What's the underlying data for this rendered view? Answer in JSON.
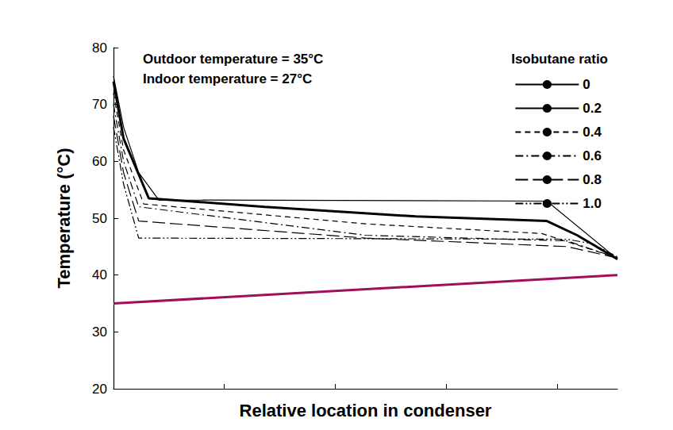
{
  "chart_data": {
    "type": "line",
    "xlabel": "Relative location in condenser",
    "ylabel": "Temperature (°C)",
    "annotations": [
      "Outdoor temperature = 35°C",
      "Indoor temperature = 27°C"
    ],
    "legend_title": "Isobutane ratio",
    "legend": "upper right",
    "grid": false,
    "tick_labels": "y",
    "xlim": [
      0,
      1
    ],
    "xticks": [
      0.22,
      0.44,
      0.66,
      0.88
    ],
    "ylim": [
      20,
      80
    ],
    "yticks": [
      20,
      30,
      40,
      50,
      60,
      70,
      80
    ],
    "series": [
      {
        "name": "0",
        "color": "#000000",
        "line_style": "solid",
        "x": [
          0,
          0.02,
          0.05,
          0.09,
          0.86,
          1
        ],
        "values": [
          75,
          66,
          58,
          53.2,
          53,
          42.8
        ]
      },
      {
        "name": "0.2",
        "color": "#000000",
        "line_style": "thick",
        "x": [
          0,
          0.02,
          0.07,
          0.3,
          0.6,
          0.86,
          0.92,
          1
        ],
        "values": [
          74,
          64,
          53.5,
          52,
          50.3,
          49.5,
          47,
          42.8
        ]
      },
      {
        "name": "0.4",
        "color": "#000000",
        "line_style": "dashed",
        "x": [
          0,
          0.02,
          0.06,
          0.5,
          0.85,
          1
        ],
        "values": [
          72,
          62,
          52.5,
          49,
          47.3,
          43
        ]
      },
      {
        "name": "0.6",
        "color": "#000000",
        "line_style": "dashdot",
        "x": [
          0,
          0.02,
          0.05,
          0.5,
          0.9,
          1
        ],
        "values": [
          70,
          60,
          52,
          47,
          46,
          43
        ]
      },
      {
        "name": "0.8",
        "color": "#000000",
        "line_style": "longdash",
        "x": [
          0,
          0.02,
          0.05,
          0.5,
          0.9,
          1
        ],
        "values": [
          68,
          58,
          49.5,
          46.5,
          45,
          43
        ]
      },
      {
        "name": "1.0",
        "color": "#000000",
        "line_style": "dashdotdot",
        "x": [
          0,
          0.02,
          0.05,
          0.9,
          0.95,
          1
        ],
        "values": [
          66,
          56,
          46.5,
          46.3,
          45.5,
          43.2
        ]
      },
      {
        "color": "#a0105a",
        "line_style": "thick",
        "x": [
          0,
          1
        ],
        "values": [
          35,
          40
        ]
      }
    ]
  }
}
